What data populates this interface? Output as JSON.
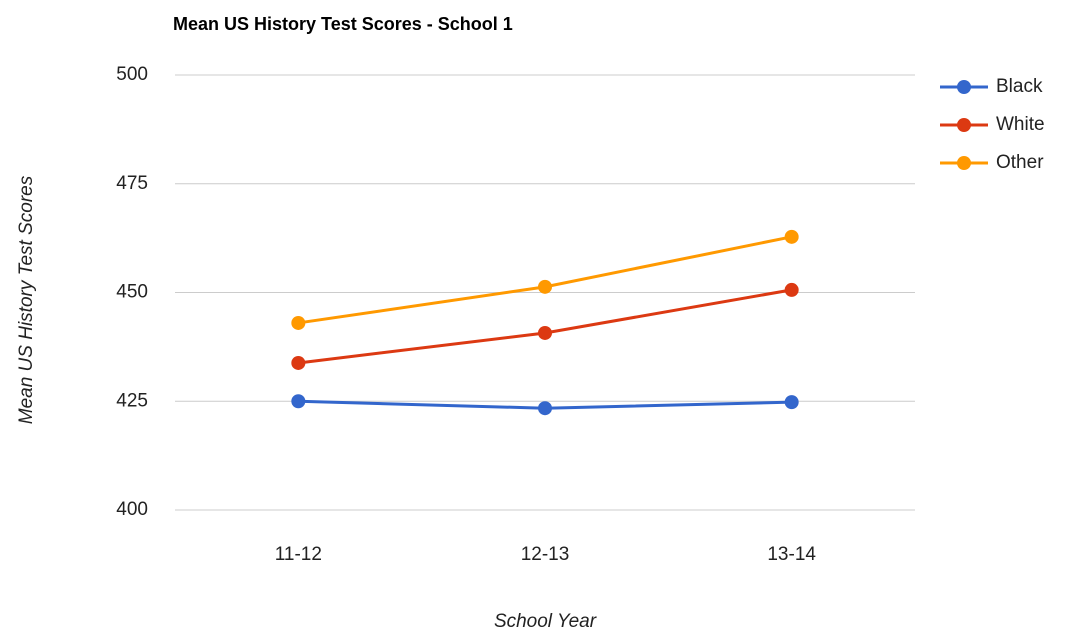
{
  "chart_data": {
    "type": "line",
    "title": "Mean US History Test Scores - School 1",
    "x_label": "School Year",
    "y_label": "Mean US History Test Scores",
    "categories": [
      "11-12",
      "12-13",
      "13-14"
    ],
    "series": [
      {
        "name": "Black",
        "color": "#3366cc",
        "values": [
          425,
          423.4,
          424.8
        ]
      },
      {
        "name": "White",
        "color": "#dc3912",
        "values": [
          433.8,
          440.7,
          450.6
        ]
      },
      {
        "name": "Other",
        "color": "#ff9900",
        "values": [
          443,
          451.3,
          462.8
        ]
      }
    ],
    "ylim": [
      400,
      500
    ],
    "yticks": [
      400,
      425,
      450,
      475,
      500
    ],
    "grid": true,
    "legend": "right"
  }
}
